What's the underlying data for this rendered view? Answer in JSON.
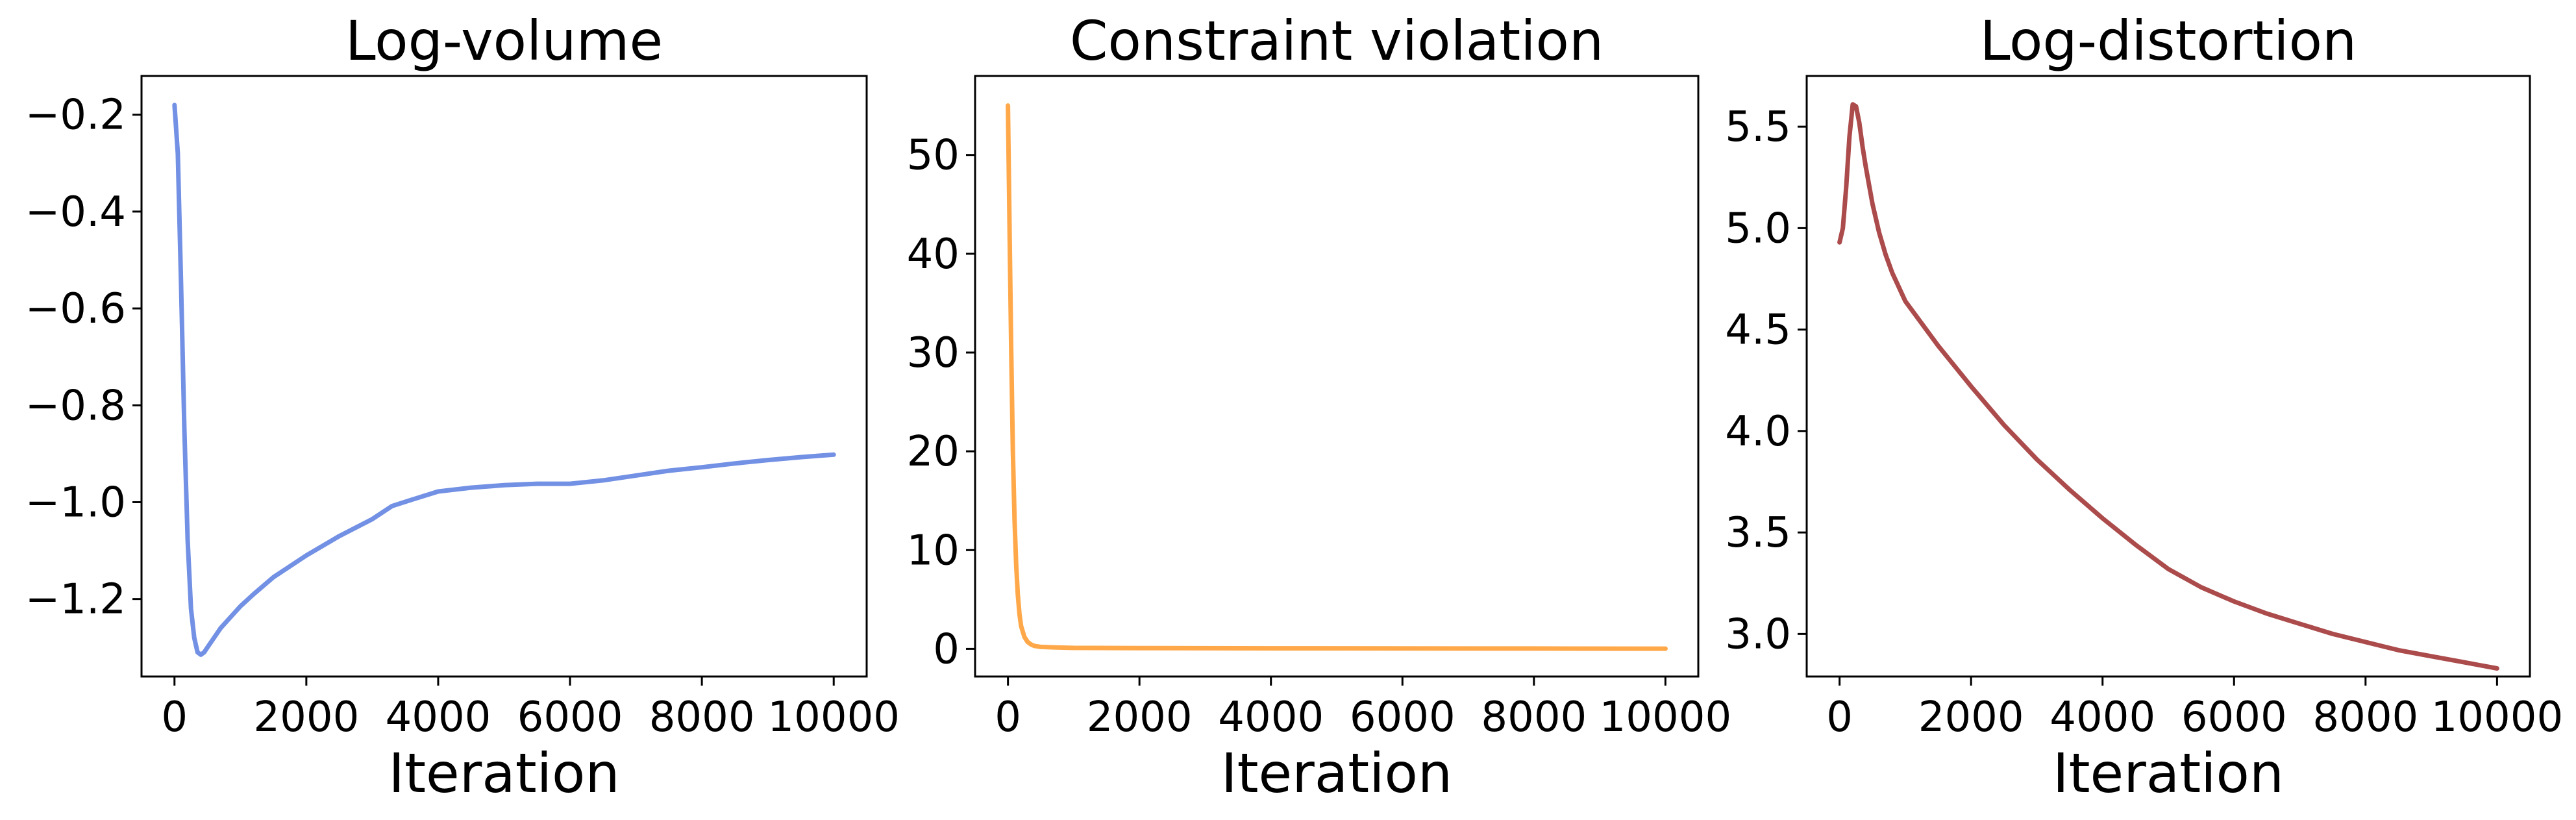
{
  "chart_data": [
    {
      "type": "line",
      "title": "Log-volume",
      "xlabel": "Iteration",
      "ylabel": "",
      "xlim": [
        -500,
        10500
      ],
      "ylim": [
        -1.36,
        -0.12
      ],
      "xticks": [
        0,
        2000,
        4000,
        6000,
        8000,
        10000
      ],
      "yticks": [
        -1.2,
        -1.0,
        -0.8,
        -0.6,
        -0.4,
        -0.2
      ],
      "ytick_labels": [
        "−1.2",
        "−1.0",
        "−0.8",
        "−0.6",
        "−0.4",
        "−0.2"
      ],
      "grid": false,
      "color": "#7290e4",
      "series": [
        {
          "x": [
            0,
            50,
            100,
            150,
            200,
            250,
            300,
            350,
            400,
            450,
            500,
            600,
            700,
            800,
            1000,
            1200,
            1500,
            2000,
            2500,
            3000,
            3300,
            3600,
            4000,
            4500,
            5000,
            5500,
            6000,
            6500,
            7000,
            7500,
            8000,
            8500,
            9000,
            9500,
            10000
          ],
          "y": [
            -0.18,
            -0.28,
            -0.55,
            -0.85,
            -1.08,
            -1.22,
            -1.28,
            -1.31,
            -1.315,
            -1.31,
            -1.3,
            -1.28,
            -1.26,
            -1.245,
            -1.215,
            -1.19,
            -1.155,
            -1.11,
            -1.07,
            -1.035,
            -1.008,
            -0.995,
            -0.978,
            -0.97,
            -0.965,
            -0.962,
            -0.962,
            -0.955,
            -0.945,
            -0.935,
            -0.928,
            -0.92,
            -0.913,
            -0.907,
            -0.902
          ]
        }
      ]
    },
    {
      "type": "line",
      "title": "Constraint violation",
      "xlabel": "Iteration",
      "ylabel": "",
      "xlim": [
        -500,
        10500
      ],
      "ylim": [
        -2.8,
        58.0
      ],
      "xticks": [
        0,
        2000,
        4000,
        6000,
        8000,
        10000
      ],
      "yticks": [
        0,
        10,
        20,
        30,
        40,
        50
      ],
      "ytick_labels": [
        "0",
        "10",
        "20",
        "30",
        "40",
        "50"
      ],
      "grid": false,
      "color": "#ffa84a",
      "series": [
        {
          "x": [
            0,
            25,
            50,
            75,
            100,
            125,
            150,
            175,
            200,
            250,
            300,
            350,
            400,
            500,
            700,
            1000,
            2000,
            4000,
            6000,
            8000,
            10000
          ],
          "y": [
            55,
            42,
            30,
            20,
            13,
            8.5,
            5.5,
            3.5,
            2.3,
            1.2,
            0.7,
            0.45,
            0.3,
            0.2,
            0.15,
            0.1,
            0.08,
            0.05,
            0.04,
            0.03,
            0.02
          ]
        }
      ]
    },
    {
      "type": "line",
      "title": "Log-distortion",
      "xlabel": "Iteration",
      "ylabel": "",
      "xlim": [
        -500,
        10500
      ],
      "ylim": [
        2.79,
        5.75
      ],
      "xticks": [
        0,
        2000,
        4000,
        6000,
        8000,
        10000
      ],
      "yticks": [
        3.0,
        3.5,
        4.0,
        4.5,
        5.0,
        5.5
      ],
      "ytick_labels": [
        "3.0",
        "3.5",
        "4.0",
        "4.5",
        "5.0",
        "5.5"
      ],
      "grid": false,
      "color": "#ac4b4b",
      "series": [
        {
          "x": [
            0,
            50,
            100,
            150,
            200,
            250,
            300,
            350,
            400,
            500,
            600,
            700,
            800,
            1000,
            1500,
            2000,
            2500,
            3000,
            3500,
            4000,
            4500,
            5000,
            5500,
            6000,
            6500,
            7000,
            7500,
            8000,
            8500,
            9000,
            9500,
            10000
          ],
          "y": [
            4.93,
            5.0,
            5.2,
            5.45,
            5.61,
            5.6,
            5.52,
            5.4,
            5.3,
            5.12,
            4.98,
            4.87,
            4.78,
            4.64,
            4.42,
            4.22,
            4.03,
            3.86,
            3.71,
            3.57,
            3.44,
            3.32,
            3.23,
            3.16,
            3.1,
            3.05,
            3.0,
            2.96,
            2.92,
            2.89,
            2.86,
            2.83
          ]
        }
      ]
    }
  ]
}
